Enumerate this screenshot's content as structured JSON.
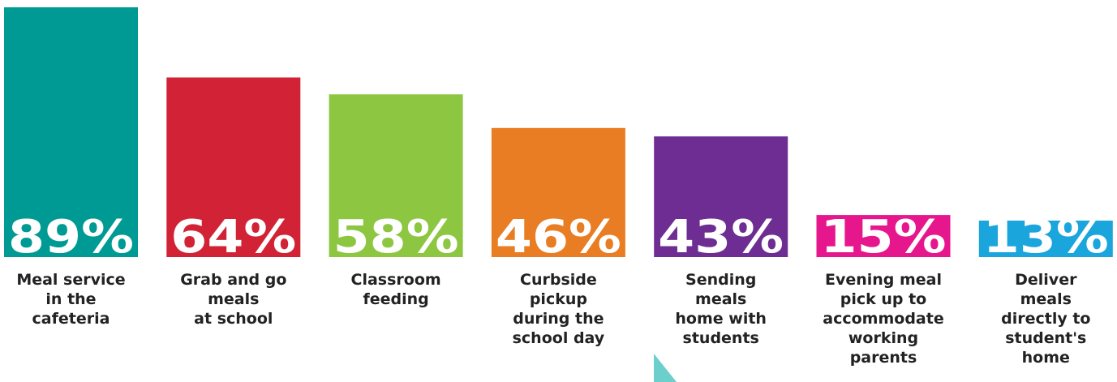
{
  "chart_data": {
    "type": "bar",
    "categories": [
      [
        "Meal service",
        "in the",
        "cafeteria"
      ],
      [
        "Grab and go",
        "meals",
        "at school"
      ],
      [
        "Classroom",
        "feeding"
      ],
      [
        "Curbside",
        "pickup",
        "during the",
        "school day"
      ],
      [
        "Sending",
        "meals",
        "home with",
        "students"
      ],
      [
        "Evening meal",
        "pick up to",
        "accommodate",
        "working",
        "parents"
      ],
      [
        "Deliver",
        "meals",
        "directly to",
        "student's",
        "home"
      ]
    ],
    "values": [
      89,
      64,
      58,
      46,
      43,
      15,
      13
    ],
    "value_labels": [
      "89%",
      "64%",
      "58%",
      "46%",
      "43%",
      "15%",
      "13%"
    ],
    "colors": [
      "#009a94",
      "#d12335",
      "#8dc641",
      "#e87d23",
      "#6d2d92",
      "#e6168c",
      "#1aa5dc"
    ],
    "ylim": [
      0,
      89
    ],
    "title": "",
    "xlabel": "",
    "ylabel": "",
    "grid": false,
    "legend": "none"
  },
  "decoration": {
    "pointer_color": "#6ccfcc"
  }
}
